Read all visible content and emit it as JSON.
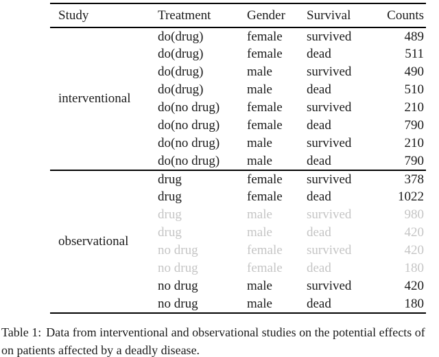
{
  "colors": {
    "text": "#1a1a1a",
    "muted": "#c5c5c5",
    "rule": "#000000",
    "background": "#ffffff"
  },
  "table": {
    "headers": [
      "Study",
      "Treatment",
      "Gender",
      "Survival",
      "Counts"
    ],
    "groups": [
      {
        "study": "interventional",
        "rows": [
          {
            "treatment": "do(drug)",
            "gender": "female",
            "survival": "survived",
            "counts": "489",
            "muted": false
          },
          {
            "treatment": "do(drug)",
            "gender": "female",
            "survival": "dead",
            "counts": "511",
            "muted": false
          },
          {
            "treatment": "do(drug)",
            "gender": "male",
            "survival": "survived",
            "counts": "490",
            "muted": false
          },
          {
            "treatment": "do(drug)",
            "gender": "male",
            "survival": "dead",
            "counts": "510",
            "muted": false
          },
          {
            "treatment": "do(no drug)",
            "gender": "female",
            "survival": "survived",
            "counts": "210",
            "muted": false
          },
          {
            "treatment": "do(no drug)",
            "gender": "female",
            "survival": "dead",
            "counts": "790",
            "muted": false
          },
          {
            "treatment": "do(no drug)",
            "gender": "male",
            "survival": "survived",
            "counts": "210",
            "muted": false
          },
          {
            "treatment": "do(no drug)",
            "gender": "male",
            "survival": "dead",
            "counts": "790",
            "muted": false
          }
        ]
      },
      {
        "study": "observational",
        "rows": [
          {
            "treatment": "drug",
            "gender": "female",
            "survival": "survived",
            "counts": "378",
            "muted": false
          },
          {
            "treatment": "drug",
            "gender": "female",
            "survival": "dead",
            "counts": "1022",
            "muted": false
          },
          {
            "treatment": "drug",
            "gender": "male",
            "survival": "survived",
            "counts": "980",
            "muted": true
          },
          {
            "treatment": "drug",
            "gender": "male",
            "survival": "dead",
            "counts": "420",
            "muted": true
          },
          {
            "treatment": "no drug",
            "gender": "female",
            "survival": "survived",
            "counts": "420",
            "muted": true
          },
          {
            "treatment": "no drug",
            "gender": "female",
            "survival": "dead",
            "counts": "180",
            "muted": true
          },
          {
            "treatment": "no drug",
            "gender": "male",
            "survival": "survived",
            "counts": "420",
            "muted": false
          },
          {
            "treatment": "no drug",
            "gender": "male",
            "survival": "dead",
            "counts": "180",
            "muted": false
          }
        ]
      }
    ]
  },
  "caption": {
    "label": "Table 1:",
    "line1": "Data from interventional and observational studies on the potential effects of",
    "line2": "on patients affected by a deadly disease."
  }
}
